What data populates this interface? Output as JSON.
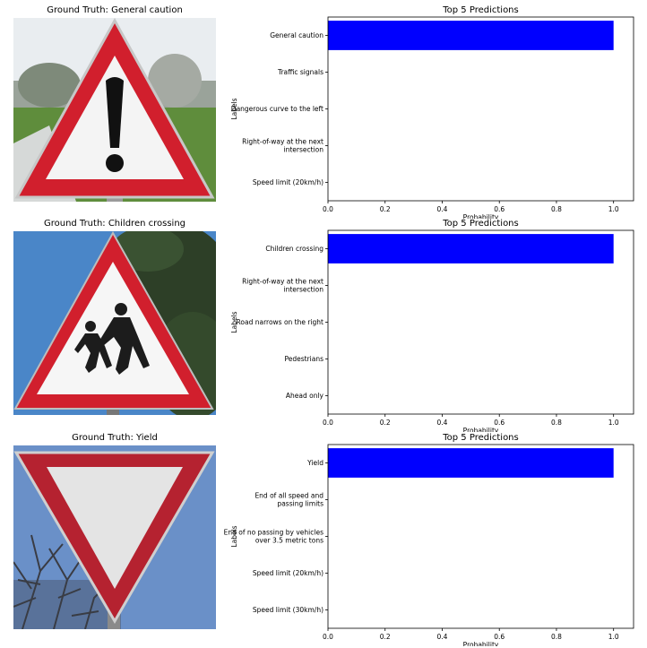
{
  "panels": [
    {
      "image_title": "Ground Truth: General caution",
      "sign_icon": "general-caution-sign",
      "colors": {
        "sky": "#e8ecef",
        "grass": "#5b8a3a",
        "trees": "#8c8f86",
        "road": "#d5d8d7",
        "red": "#d11f2d",
        "white": "#f4f4f4",
        "black": "#111111"
      }
    },
    {
      "image_title": "Ground Truth: Children crossing",
      "sign_icon": "children-crossing-sign",
      "colors": {
        "sky": "#4a86c8",
        "foliage": "#2d3f27",
        "red": "#d11f2d",
        "white": "#f6f6f6",
        "black": "#1c1c1c"
      }
    },
    {
      "image_title": "Ground Truth: Yield",
      "sign_icon": "yield-sign",
      "colors": {
        "sky": "#6a90c8",
        "branches": "#3a3c44",
        "red": "#b52230",
        "white": "#e4e4e4",
        "black": "#222222"
      }
    }
  ],
  "chart_data": [
    {
      "type": "bar",
      "orientation": "horizontal",
      "title": "Top 5 Predictions",
      "xlabel": "Probability",
      "ylabel": "Labels",
      "categories": [
        "General caution",
        "Traffic signals",
        "Dangerous curve to the left",
        "Right-of-way at the next intersection",
        "Speed limit (20km/h)"
      ],
      "category_lines": [
        [
          "General caution"
        ],
        [
          "Traffic signals"
        ],
        [
          "Dangerous curve to the left"
        ],
        [
          "Right-of-way at the next",
          "intersection"
        ],
        [
          "Speed limit (20km/h)"
        ]
      ],
      "values": [
        1.0,
        0.0,
        0.0,
        0.0,
        0.0
      ],
      "xlim": [
        0.0,
        1.07
      ],
      "xticks": [
        0.0,
        0.2,
        0.4,
        0.6,
        0.8,
        1.0
      ],
      "xtick_labels": [
        "0.0",
        "0.2",
        "0.4",
        "0.6",
        "0.8",
        "1.0"
      ],
      "bar_color": "#0000ff",
      "grid": false
    },
    {
      "type": "bar",
      "orientation": "horizontal",
      "title": "Top 5 Predictions",
      "xlabel": "Probability",
      "ylabel": "Labels",
      "categories": [
        "Children crossing",
        "Right-of-way at the next intersection",
        "Road narrows on the right",
        "Pedestrians",
        "Ahead only"
      ],
      "category_lines": [
        [
          "Children crossing"
        ],
        [
          "Right-of-way at the next",
          "intersection"
        ],
        [
          "Road narrows on the right"
        ],
        [
          "Pedestrians"
        ],
        [
          "Ahead only"
        ]
      ],
      "values": [
        1.0,
        0.0,
        0.0,
        0.0,
        0.0
      ],
      "xlim": [
        0.0,
        1.07
      ],
      "xticks": [
        0.0,
        0.2,
        0.4,
        0.6,
        0.8,
        1.0
      ],
      "xtick_labels": [
        "0.0",
        "0.2",
        "0.4",
        "0.6",
        "0.8",
        "1.0"
      ],
      "bar_color": "#0000ff",
      "grid": false
    },
    {
      "type": "bar",
      "orientation": "horizontal",
      "title": "Top 5 Predictions",
      "xlabel": "Probability",
      "ylabel": "Labels",
      "categories": [
        "Yield",
        "End of all speed and passing limits",
        "End of no passing by vehicles over 3.5 metric tons",
        "Speed limit (20km/h)",
        "Speed limit (30km/h)"
      ],
      "category_lines": [
        [
          "Yield"
        ],
        [
          "End of all speed and",
          "passing limits"
        ],
        [
          "End of no passing by vehicles",
          "over 3.5 metric tons"
        ],
        [
          "Speed limit (20km/h)"
        ],
        [
          "Speed limit (30km/h)"
        ]
      ],
      "values": [
        1.0,
        0.0,
        0.0,
        0.0,
        0.0
      ],
      "xlim": [
        0.0,
        1.07
      ],
      "xticks": [
        0.0,
        0.2,
        0.4,
        0.6,
        0.8,
        1.0
      ],
      "xtick_labels": [
        "0.0",
        "0.2",
        "0.4",
        "0.6",
        "0.8",
        "1.0"
      ],
      "bar_color": "#0000ff",
      "grid": false
    }
  ]
}
